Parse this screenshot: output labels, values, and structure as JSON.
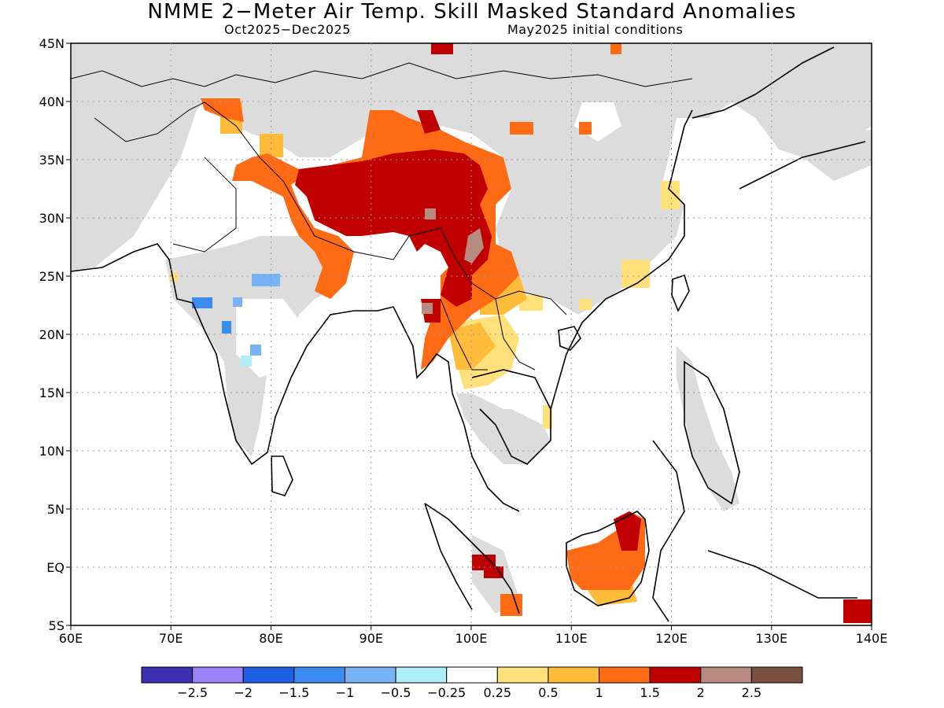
{
  "header": {
    "title": "NMME 2−Meter Air Temp. Skill Masked Standard Anomalies",
    "period": "Oct2025−Dec2025",
    "init": "May2025 initial conditions"
  },
  "axes": {
    "lat_labels": [
      "45N",
      "40N",
      "35N",
      "30N",
      "25N",
      "20N",
      "15N",
      "10N",
      "5N",
      "EQ",
      "5S"
    ],
    "lon_labels": [
      "60E",
      "70E",
      "80E",
      "90E",
      "100E",
      "110E",
      "120E",
      "130E",
      "140E"
    ]
  },
  "legend": {
    "colors": [
      "#3d2fb4",
      "#9b82f6",
      "#1e5fe6",
      "#3c8cf0",
      "#78b4f5",
      "#aeeef8",
      "#ffffff",
      "#ffe07a",
      "#ffbb3a",
      "#ff6a14",
      "#c00000",
      "#b88b80",
      "#7a5040"
    ],
    "labels": [
      "−2.5",
      "−2",
      "−1.5",
      "−1",
      "−0.5",
      "−0.25",
      "0.25",
      "0.5",
      "1",
      "1.5",
      "2",
      "2.5"
    ]
  },
  "colors": {
    "land_masked": "#dcdcdc",
    "ocean": "#ffffff"
  }
}
